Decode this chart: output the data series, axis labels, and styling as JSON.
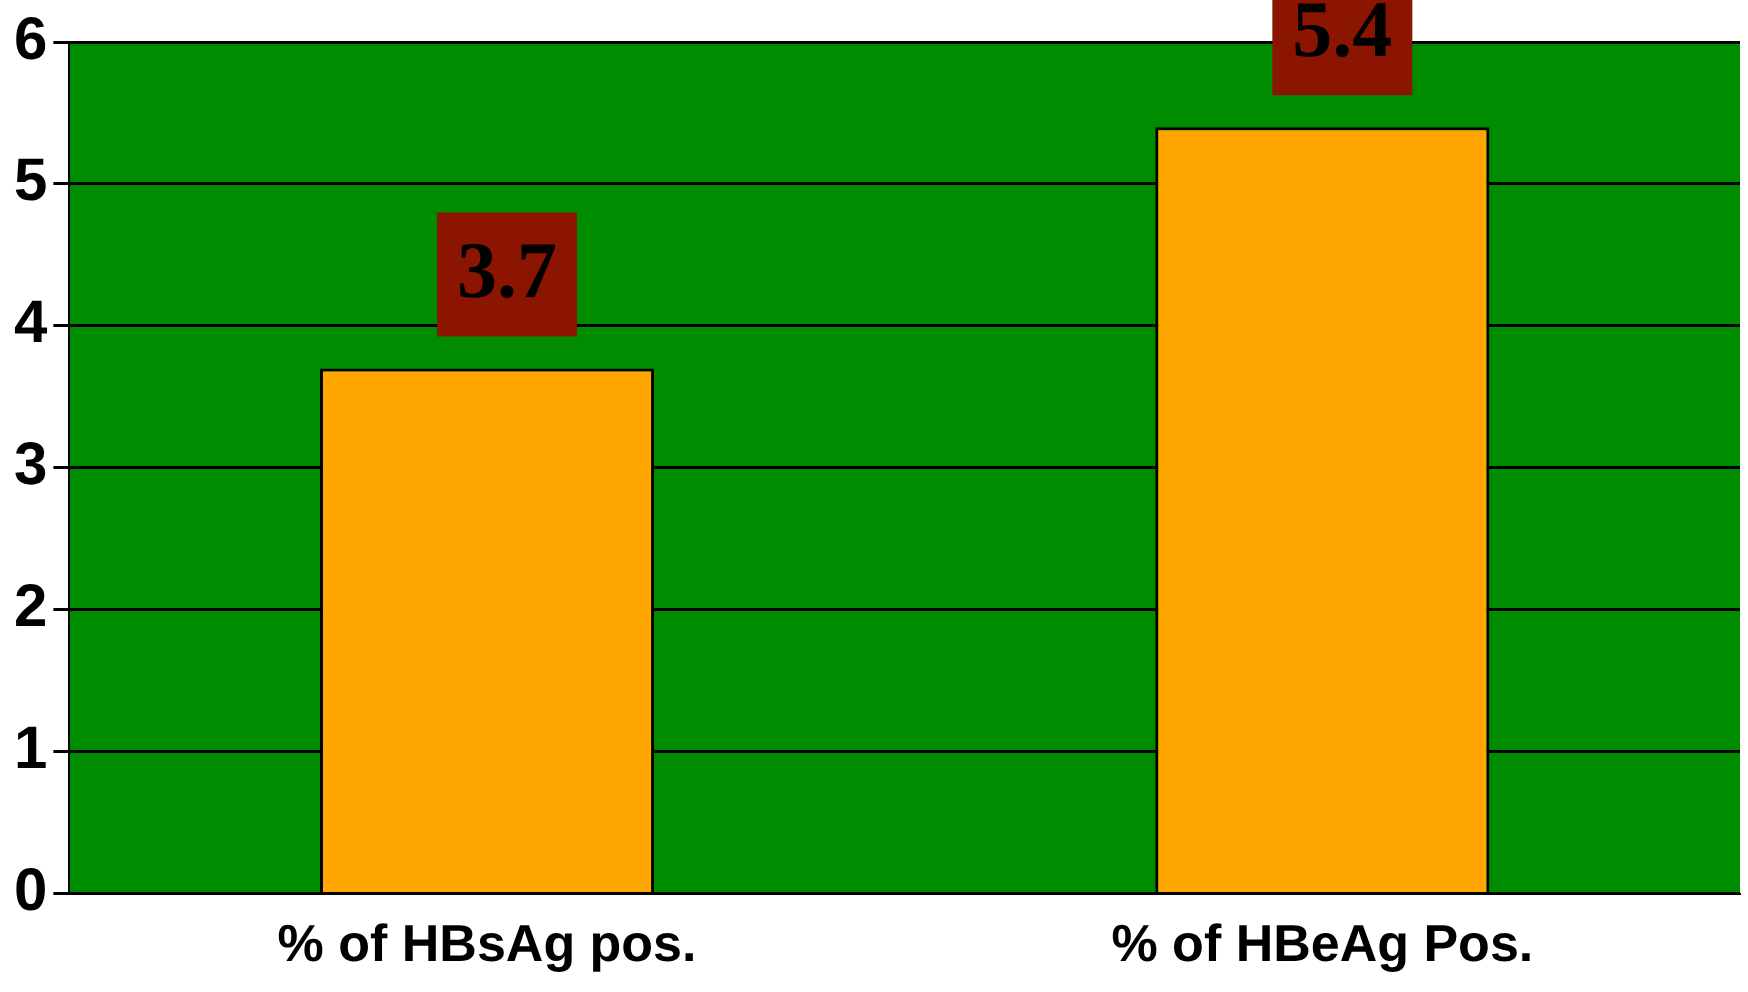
{
  "chart_data": {
    "type": "bar",
    "categories": [
      "% of HBsAg pos.",
      "% of HBeAg Pos."
    ],
    "values": [
      3.7,
      5.4
    ],
    "color": "#ffa500",
    "ylim": [
      0,
      6
    ],
    "yticks": [
      0,
      1,
      2,
      3,
      4,
      5,
      6
    ],
    "grid": "y",
    "data_labels": true
  }
}
